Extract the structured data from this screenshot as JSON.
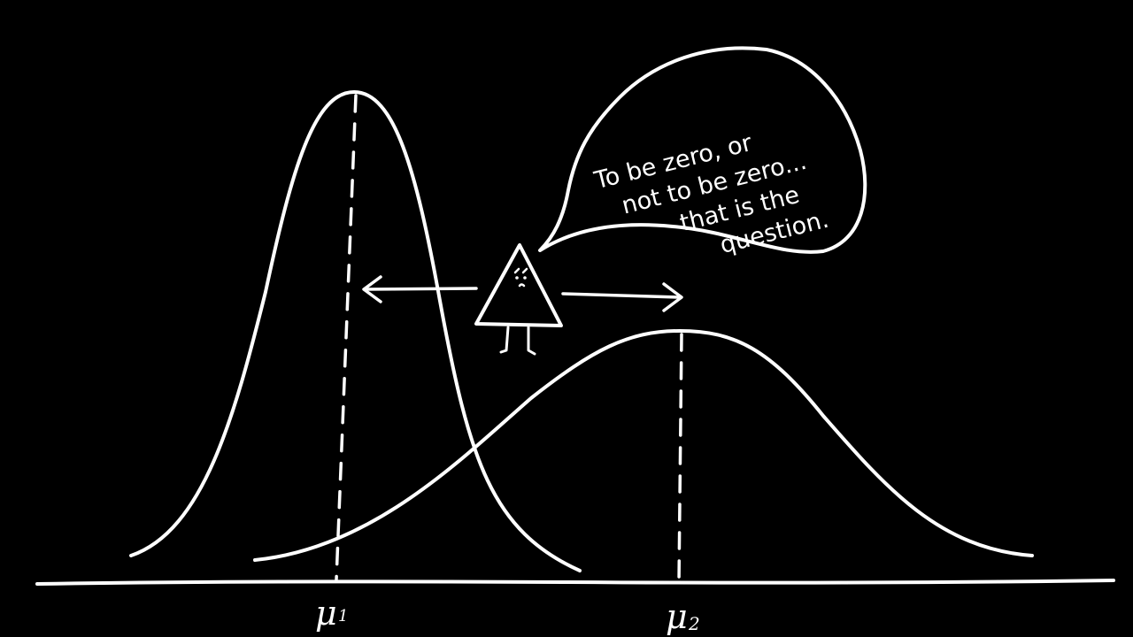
{
  "colors": {
    "background": "#000000",
    "ink": "#ffffff"
  },
  "distributions": [
    {
      "name": "narrow-bell-curve",
      "mean_label": "μ",
      "mean_subscript": "1"
    },
    {
      "name": "wide-bell-curve",
      "mean_label": "μ",
      "mean_subscript": "2"
    }
  ],
  "character": {
    "icon": "triangle-character-icon",
    "expression": "worried"
  },
  "speech_bubble": {
    "lines": [
      "To be zero, or",
      "not to be zero...",
      "that is the",
      "question."
    ]
  }
}
